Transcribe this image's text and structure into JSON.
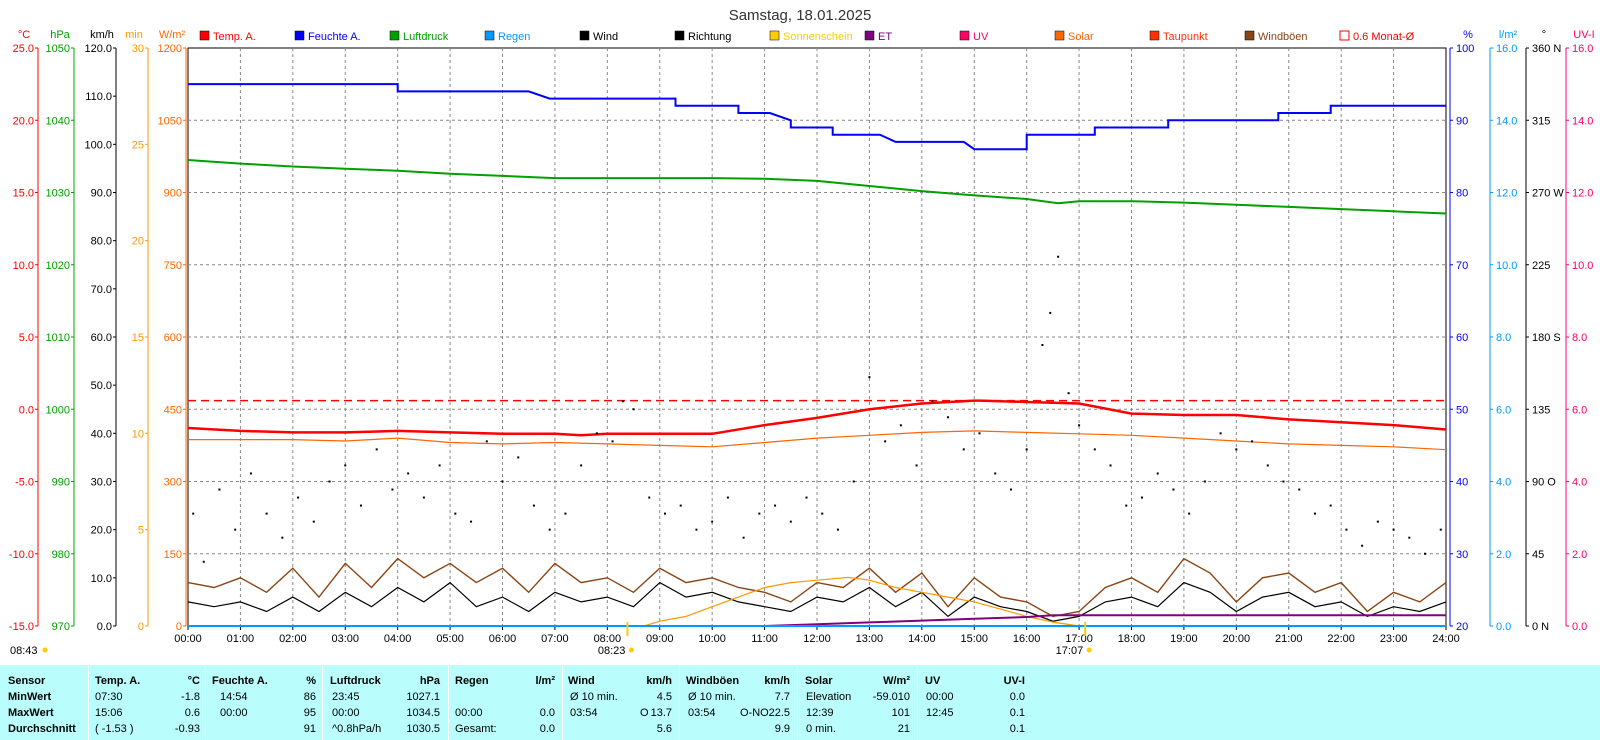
{
  "chart_data": {
    "type": "line",
    "title": "Samstag, 18.01.2025",
    "x_tick_labels": [
      "00:00",
      "01:00",
      "02:00",
      "03:00",
      "04:00",
      "05:00",
      "06:00",
      "07:00",
      "08:00",
      "09:00",
      "10:00",
      "11:00",
      "12:00",
      "13:00",
      "14:00",
      "15:00",
      "16:00",
      "17:00",
      "18:00",
      "19:00",
      "20:00",
      "21:00",
      "22:00",
      "23:00",
      "24:00"
    ],
    "sunrise_label": "08:23",
    "sunset_label": "17:07",
    "sunshine_axis_label": "08:43",
    "grid": true,
    "axes": [
      {
        "unit": "°C",
        "color": "#ff0000",
        "ticks": [
          "25.0",
          "20.0",
          "15.0",
          "10.0",
          "5.0",
          "0.0",
          "-5.0",
          "-10.0",
          "-15.0"
        ]
      },
      {
        "unit": "hPa",
        "color": "#00a000",
        "ticks": [
          "1050",
          "1040",
          "1030",
          "1020",
          "1010",
          "1000",
          "990",
          "980",
          "970"
        ]
      },
      {
        "unit": "km/h",
        "color": "#000000",
        "ticks": [
          "120.0",
          "110.0",
          "100.0",
          "90.0",
          "80.0",
          "70.0",
          "60.0",
          "50.0",
          "40.0",
          "30.0",
          "20.0",
          "10.0",
          "0.0"
        ]
      },
      {
        "unit": "min",
        "color": "#ff9900",
        "ticks": [
          "30",
          "25",
          "20",
          "15",
          "10",
          "5",
          "0"
        ]
      },
      {
        "unit": "W/m²",
        "color": "#ff6600",
        "ticks": [
          "1200",
          "1050",
          "900",
          "750",
          "600",
          "450",
          "300",
          "150",
          "0"
        ]
      },
      {
        "unit": "%",
        "color": "#0000ff",
        "ticks": [
          "100",
          "90",
          "80",
          "70",
          "60",
          "50",
          "40",
          "30",
          "20"
        ]
      },
      {
        "unit": "l/m²",
        "color": "#0099ff",
        "ticks": [
          "16.0",
          "14.0",
          "12.0",
          "10.0",
          "8.0",
          "6.0",
          "4.0",
          "2.0",
          "0.0"
        ]
      },
      {
        "unit": "°",
        "color": "#000000",
        "ticks": [
          "360 N",
          "315",
          "270 W",
          "225",
          "180 S",
          "135",
          "90 O",
          "45",
          "0 N"
        ]
      },
      {
        "unit": "UV-I",
        "color": "#ff0066",
        "ticks": [
          "16.0",
          "14.0",
          "12.0",
          "10.0",
          "8.0",
          "6.0",
          "4.0",
          "2.0",
          "0.0"
        ]
      }
    ],
    "legend": [
      {
        "label": "Temp. A.",
        "color": "#ff0000"
      },
      {
        "label": "Feuchte A.",
        "color": "#0000ff"
      },
      {
        "label": "Luftdruck",
        "color": "#00a000"
      },
      {
        "label": "Regen",
        "color": "#0099ff"
      },
      {
        "label": "Wind",
        "color": "#000000"
      },
      {
        "label": "Richtung",
        "color": "#000000"
      },
      {
        "label": "Sonnenschein",
        "color": "#ffcc00"
      },
      {
        "label": "ET",
        "color": "#800080"
      },
      {
        "label": "UV",
        "color": "#ff0066"
      },
      {
        "label": "Solar",
        "color": "#ff6600"
      },
      {
        "label": "Taupunkt",
        "color": "#ff3300"
      },
      {
        "label": "Windböen",
        "color": "#8b4513"
      },
      {
        "label": "0.6 Monat-Ø",
        "color": "#ff0000"
      }
    ],
    "monthly_avg_temp": 0.6,
    "series": [
      {
        "name": "Temp. A.",
        "unit": "°C",
        "color": "#ff0000",
        "x": [
          0,
          1,
          2,
          3,
          4,
          5,
          6,
          7,
          7.5,
          8,
          9,
          10,
          11,
          12,
          13,
          14,
          15,
          15.1,
          16,
          17,
          18,
          19,
          20,
          21,
          22,
          23,
          24
        ],
        "y": [
          -1.3,
          -1.5,
          -1.6,
          -1.6,
          -1.5,
          -1.6,
          -1.7,
          -1.7,
          -1.8,
          -1.7,
          -1.7,
          -1.7,
          -1.1,
          -0.6,
          0.0,
          0.4,
          0.6,
          0.6,
          0.5,
          0.4,
          -0.3,
          -0.4,
          -0.4,
          -0.7,
          -0.9,
          -1.1,
          -1.4
        ]
      },
      {
        "name": "Taupunkt",
        "unit": "°C",
        "color": "#ff6600",
        "x": [
          0,
          1,
          2,
          3,
          4,
          5,
          6,
          7,
          8,
          9,
          10,
          11,
          12,
          13,
          14,
          15,
          16,
          17,
          18,
          19,
          20,
          21,
          22,
          23,
          24
        ],
        "y": [
          -2.1,
          -2.1,
          -2.1,
          -2.2,
          -2.0,
          -2.3,
          -2.4,
          -2.3,
          -2.4,
          -2.5,
          -2.6,
          -2.3,
          -2.0,
          -1.8,
          -1.6,
          -1.5,
          -1.6,
          -1.7,
          -1.8,
          -2.0,
          -2.2,
          -2.4,
          -2.5,
          -2.6,
          -2.8
        ]
      },
      {
        "name": "Feuchte A.",
        "unit": "%",
        "color": "#0000ff",
        "x": [
          0,
          4,
          4,
          6.5,
          6.9,
          7,
          9.3,
          9.3,
          10.5,
          10.5,
          11.1,
          11.5,
          11.5,
          12.3,
          12.3,
          13.2,
          13.5,
          13.5,
          14.8,
          15,
          15,
          16,
          16,
          17.3,
          17.3,
          18.7,
          18.7,
          20.8,
          20.8,
          21.8,
          21.8,
          24
        ],
        "y": [
          95,
          95,
          94,
          94,
          93,
          93,
          93,
          92,
          92,
          91,
          91,
          90,
          89,
          89,
          88,
          88,
          87,
          87,
          87,
          86,
          86,
          86,
          88,
          88,
          89,
          89,
          90,
          90,
          91,
          91,
          92,
          92
        ]
      },
      {
        "name": "Luftdruck",
        "unit": "hPa",
        "color": "#00a000",
        "x": [
          0,
          1,
          2,
          3,
          4,
          5,
          6,
          7,
          8,
          9,
          10,
          11,
          12,
          13,
          14,
          15,
          16,
          16.6,
          17,
          18,
          19,
          20,
          21,
          22,
          23,
          24
        ],
        "y": [
          1034.5,
          1034.0,
          1033.6,
          1033.3,
          1033.0,
          1032.6,
          1032.3,
          1032.0,
          1032.0,
          1032.0,
          1032.0,
          1031.9,
          1031.6,
          1030.9,
          1030.2,
          1029.6,
          1029.1,
          1028.5,
          1028.8,
          1028.8,
          1028.6,
          1028.3,
          1028.0,
          1027.7,
          1027.4,
          1027.1
        ]
      },
      {
        "name": "Wind",
        "unit": "km/h",
        "color": "#000000",
        "x": [
          0,
          0.5,
          1,
          1.5,
          2,
          2.5,
          3,
          3.5,
          4,
          4.5,
          5,
          5.5,
          6,
          6.5,
          7,
          7.5,
          8,
          8.5,
          9,
          9.5,
          10,
          10.5,
          11,
          11.5,
          12,
          12.5,
          13,
          13.5,
          14,
          14.5,
          15,
          15.5,
          16,
          16.5,
          17,
          17.5,
          18,
          18.5,
          19,
          19.5,
          20,
          20.5,
          21,
          21.5,
          22,
          22.5,
          23,
          23.5,
          24
        ],
        "y": [
          5,
          4,
          5,
          3,
          6,
          3,
          7,
          4,
          8,
          5,
          9,
          4,
          6,
          3,
          7,
          5,
          6,
          4,
          9,
          6,
          7,
          5,
          4,
          3,
          6,
          5,
          8,
          4,
          7,
          2,
          6,
          4,
          3,
          1,
          2,
          5,
          6,
          4,
          9,
          7,
          3,
          6,
          7,
          4,
          5,
          2,
          4,
          3,
          5
        ]
      },
      {
        "name": "Windböen",
        "unit": "km/h",
        "color": "#8b4513",
        "x": [
          0,
          0.5,
          1,
          1.5,
          2,
          2.5,
          3,
          3.5,
          4,
          4.5,
          5,
          5.5,
          6,
          6.5,
          7,
          7.5,
          8,
          8.5,
          9,
          9.5,
          10,
          10.5,
          11,
          11.5,
          12,
          12.5,
          13,
          13.5,
          14,
          14.5,
          15,
          15.5,
          16,
          16.5,
          17,
          17.5,
          18,
          18.5,
          19,
          19.5,
          20,
          20.5,
          21,
          21.5,
          22,
          22.5,
          23,
          23.5,
          24
        ],
        "y": [
          9,
          8,
          10,
          7,
          12,
          6,
          13,
          8,
          14,
          10,
          13,
          9,
          12,
          7,
          13,
          9,
          10,
          7,
          12,
          9,
          10,
          8,
          7,
          5,
          9,
          8,
          12,
          7,
          11,
          4,
          10,
          6,
          5,
          2,
          3,
          8,
          10,
          7,
          14,
          11,
          5,
          10,
          11,
          7,
          9,
          3,
          7,
          5,
          9
        ]
      },
      {
        "name": "Solar",
        "unit": "W/m²",
        "color": "#ff9900",
        "x": [
          0,
          8.7,
          9,
          9.5,
          10,
          10.5,
          11,
          11.5,
          12,
          12.6,
          13,
          13.5,
          14,
          14.5,
          15,
          15.5,
          16,
          16.5,
          17,
          24
        ],
        "y": [
          0,
          0,
          10,
          20,
          40,
          60,
          80,
          90,
          95,
          101,
          95,
          80,
          70,
          60,
          50,
          35,
          20,
          8,
          0,
          0
        ]
      },
      {
        "name": "ET",
        "unit": "l/m²",
        "color": "#800080",
        "x": [
          0,
          11,
          12,
          13,
          14,
          15,
          16,
          16.5,
          24
        ],
        "y": [
          0,
          0,
          0.05,
          0.1,
          0.15,
          0.2,
          0.25,
          0.3,
          0.3
        ]
      },
      {
        "name": "Regen",
        "unit": "l/m²",
        "color": "#0099ff",
        "x": [
          0,
          24
        ],
        "y": [
          0,
          0
        ]
      }
    ],
    "direction_points": {
      "name": "Richtung",
      "unit": "°",
      "color": "#000000",
      "x": [
        0.1,
        0.3,
        0.6,
        0.9,
        1.2,
        1.5,
        1.8,
        2.1,
        2.4,
        2.7,
        3.0,
        3.3,
        3.6,
        3.9,
        4.2,
        4.5,
        4.8,
        5.1,
        5.4,
        5.7,
        6.0,
        6.3,
        6.6,
        6.9,
        7.2,
        7.5,
        7.8,
        8.1,
        8.3,
        8.5,
        8.8,
        9.1,
        9.4,
        9.7,
        10.0,
        10.3,
        10.6,
        10.9,
        11.2,
        11.5,
        11.8,
        12.1,
        12.4,
        12.7,
        13.0,
        13.3,
        13.6,
        13.9,
        14.2,
        14.5,
        14.8,
        15.1,
        15.4,
        15.7,
        16.0,
        16.3,
        16.45,
        16.6,
        16.8,
        17.0,
        17.3,
        17.6,
        17.9,
        18.2,
        18.5,
        18.8,
        19.1,
        19.4,
        19.7,
        20.0,
        20.3,
        20.6,
        20.9,
        21.2,
        21.5,
        21.8,
        22.1,
        22.4,
        22.7,
        23.0,
        23.3,
        23.6,
        23.9
      ],
      "y": [
        70,
        40,
        85,
        60,
        95,
        70,
        55,
        80,
        65,
        90,
        100,
        75,
        110,
        85,
        95,
        80,
        100,
        70,
        65,
        115,
        90,
        105,
        75,
        60,
        70,
        100,
        120,
        115,
        140,
        135,
        80,
        70,
        75,
        60,
        65,
        80,
        55,
        70,
        75,
        65,
        80,
        70,
        60,
        90,
        155,
        115,
        125,
        100,
        140,
        130,
        110,
        120,
        95,
        85,
        110,
        175,
        195,
        230,
        145,
        125,
        110,
        100,
        75,
        80,
        95,
        85,
        70,
        90,
        120,
        110,
        115,
        100,
        90,
        85,
        70,
        75,
        60,
        50,
        65,
        60,
        55,
        45,
        60
      ]
    }
  },
  "stats_table": {
    "headers": {
      "sensor": "Sensor",
      "temp": "Temp. A.",
      "temp_unit": "°C",
      "feuchte": "Feuchte A.",
      "feuchte_unit": "%",
      "luftdruck": "Luftdruck",
      "luftdruck_unit": "hPa",
      "regen": "Regen",
      "regen_unit": "l/m²",
      "wind": "Wind",
      "wind_unit": "km/h",
      "boeen": "Windböen",
      "boeen_unit": "km/h",
      "solar": "Solar",
      "solar_unit": "W/m²",
      "uv": "UV",
      "uv_unit": "UV-I"
    },
    "row_labels": [
      "MinWert",
      "MaxWert",
      "Durchschnitt"
    ],
    "rows": [
      {
        "temp_time": "07:30",
        "temp_val": "-1.8",
        "feuchte_time": "14:54",
        "feuchte_val": "86",
        "luft_time": "23:45",
        "luft_val": "1027.1",
        "regen_time": "",
        "regen_val": "",
        "wind_time": "Ø 10 min.",
        "wind_dir": "",
        "wind_val": "4.5",
        "boeen_time": "Ø 10 min.",
        "boeen_dir": "",
        "boeen_val": "7.7",
        "solar_time": "Elevation",
        "solar_val": "-59.010",
        "uv_time": "00:00",
        "uv_val": "0.0"
      },
      {
        "temp_time": "15:06",
        "temp_val": "0.6",
        "feuchte_time": "00:00",
        "feuchte_val": "95",
        "luft_time": "00:00",
        "luft_val": "1034.5",
        "regen_time": "00:00",
        "regen_val": "0.0",
        "wind_time": "03:54",
        "wind_dir": "O",
        "wind_val": "13.7",
        "boeen_time": "03:54",
        "boeen_dir": "O-NO",
        "boeen_val": "22.5",
        "solar_time": "12:39",
        "solar_val": "101",
        "uv_time": "12:45",
        "uv_val": "0.1"
      },
      {
        "temp_time": "( -1.53 )",
        "temp_val": "-0.93",
        "feuchte_time": "",
        "feuchte_val": "91",
        "luft_time": "^0.8hPa/h",
        "luft_val": "1030.5",
        "regen_time": "Gesamt:",
        "regen_val": "0.0",
        "wind_time": "",
        "wind_dir": "",
        "wind_val": "5.6",
        "boeen_time": "",
        "boeen_dir": "",
        "boeen_val": "9.9",
        "solar_time": "0 min.",
        "solar_val": "21",
        "uv_time": "",
        "uv_val": "0.1"
      }
    ]
  }
}
